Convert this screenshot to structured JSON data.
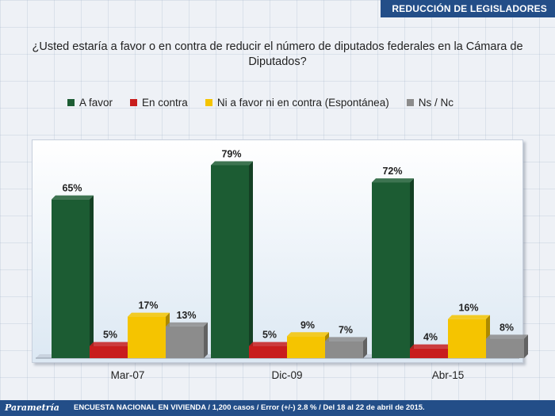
{
  "header": {
    "title": "REDUCCIÓN DE LEGISLADORES"
  },
  "footer": {
    "logo": "Parametría",
    "text": "ENCUESTA NACIONAL EN VIVIENDA / 1,200 casos / Error (+/-) 2.8 % / Del 18 al 22 de abril de 2015."
  },
  "chart_data": {
    "type": "bar",
    "title": "¿Usted estaría a favor o en contra de reducir el número de diputados federales en la Cámara de Diputados?",
    "categories": [
      "Mar-07",
      "Dic-09",
      "Abr-15"
    ],
    "series": [
      {
        "name": "A favor",
        "values": [
          65,
          79,
          72
        ],
        "color": "#1c5c33"
      },
      {
        "name": "En contra",
        "values": [
          5,
          5,
          4
        ],
        "color": "#c81d1d"
      },
      {
        "name": "Ni a favor ni en contra (Espontánea)",
        "values": [
          17,
          9,
          16
        ],
        "color": "#f5c400"
      },
      {
        "name": "Ns / Nc",
        "values": [
          13,
          7,
          8
        ],
        "color": "#8c8c8c"
      }
    ],
    "value_suffix": "%",
    "ylim": [
      0,
      85
    ],
    "grid": false,
    "legend_position": "top"
  }
}
